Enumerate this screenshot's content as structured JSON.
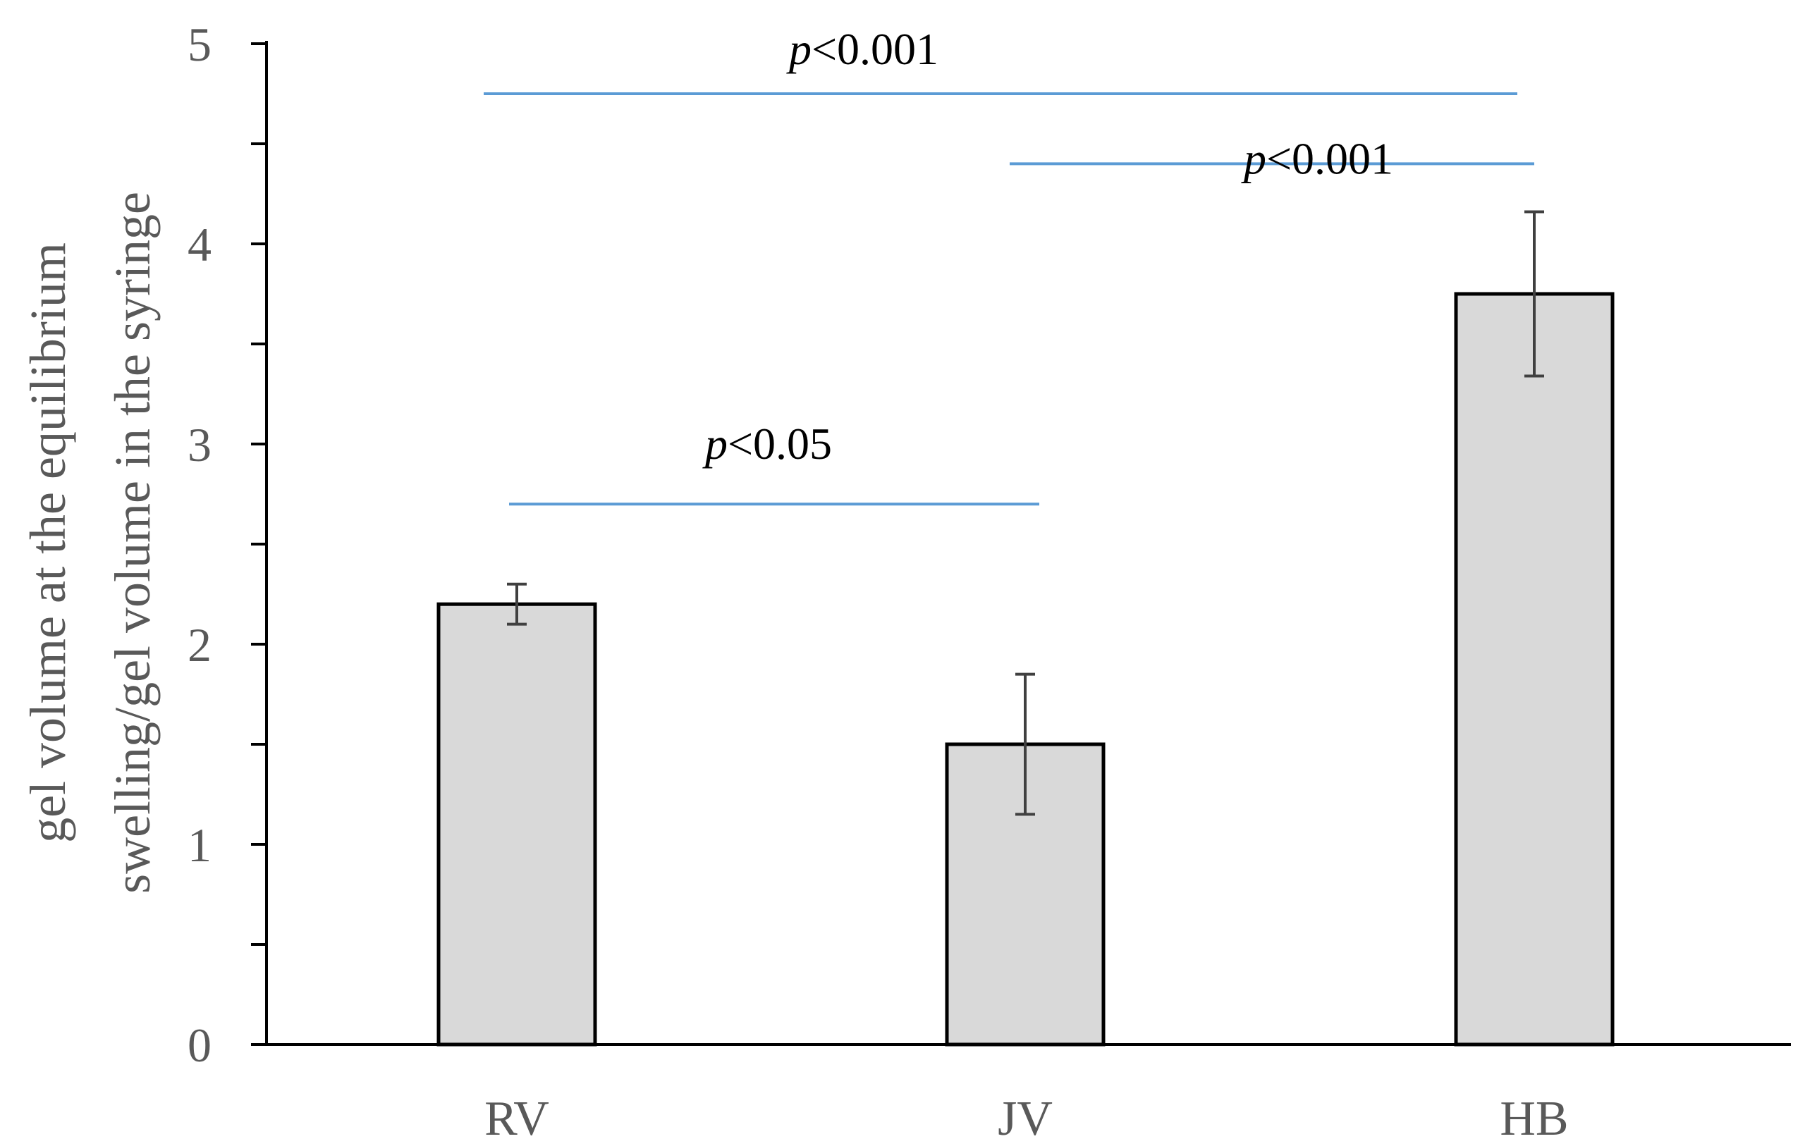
{
  "chart_data": {
    "type": "bar",
    "title": "",
    "xlabel": "",
    "ylabel_lines": [
      "gel volume at the equilibrium",
      "swelling/gel volume in the syringe"
    ],
    "ylim": [
      0,
      5
    ],
    "y_major_ticks": [
      0,
      1,
      2,
      3,
      4,
      5
    ],
    "y_minor_ticks": [
      0.5,
      1.5,
      2.5,
      3.5,
      4.5
    ],
    "categories": [
      "RV",
      "JV",
      "HB"
    ],
    "values": [
      2.2,
      1.5,
      3.75
    ],
    "errors": [
      0.1,
      0.35,
      0.41
    ],
    "significance": [
      {
        "from": "RV",
        "to": "HB",
        "y": 4.75,
        "p_symbol": "p",
        "label": "<0.001"
      },
      {
        "from": "JV",
        "to": "HB",
        "y": 4.4,
        "p_symbol": "p",
        "label": "<0.001"
      },
      {
        "from": "RV",
        "to": "JV",
        "y": 2.7,
        "p_symbol": "p",
        "label": "<0.05"
      }
    ],
    "colors": {
      "bar_fill": "#d9d9d9",
      "bar_stroke": "#000000",
      "error_bar": "#404040",
      "significance_line": "#5b9bd5",
      "axis": "#000000"
    }
  }
}
